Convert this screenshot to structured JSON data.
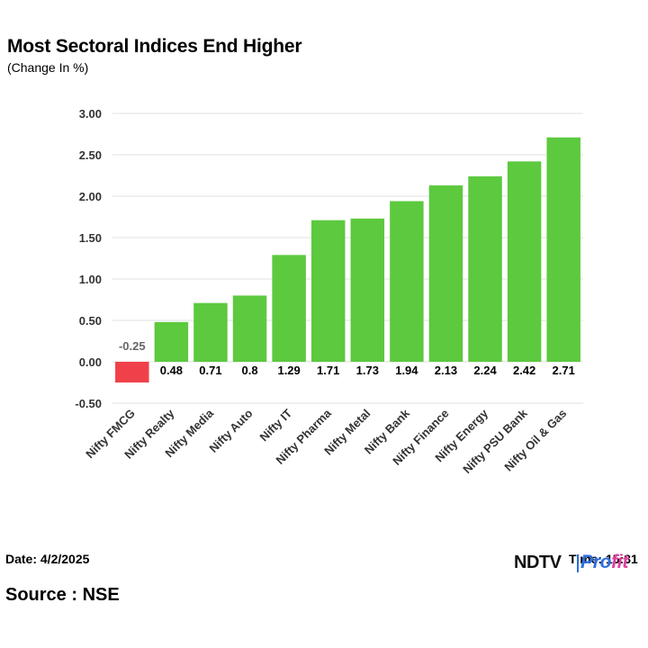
{
  "header": {
    "title": "Most Sectoral Indices End Higher",
    "subtitle": "(Change In %)"
  },
  "footer": {
    "date": "Date: 4/2/2025",
    "time": "Time: 15:31",
    "source": "Source : NSE",
    "logo_text_1": "NDTV",
    "logo_text_2": "Pro",
    "logo_text_3": "fit"
  },
  "colors": {
    "positive": "#5cc93f",
    "negative": "#f0414a",
    "grid": "#e2e2e2",
    "brand_blue": "#2f6fe0",
    "brand_pink": "#e03fa0"
  },
  "chart_data": {
    "type": "bar",
    "title": "Most Sectoral Indices End Higher",
    "subtitle": "(Change In %)",
    "categories": [
      "Nifty FMCG",
      "Nifty Realty",
      "Nifty Media",
      "Nifty Auto",
      "Nifty IT",
      "Nifty Pharma",
      "Nifty Metal",
      "Nifty Bank",
      "Nifty Finance",
      "Nifty Energy",
      "Nifty PSU Bank",
      "Nifty Oil & Gas"
    ],
    "values": [
      -0.25,
      0.48,
      0.71,
      0.8,
      1.29,
      1.71,
      1.73,
      1.94,
      2.13,
      2.24,
      2.42,
      2.71
    ],
    "data_labels": [
      "-0.25",
      "0.48",
      "0.71",
      "0.8",
      "1.29",
      "1.71",
      "1.73",
      "1.94",
      "2.13",
      "2.24",
      "2.42",
      "2.71"
    ],
    "yticks": [
      "-0.50",
      "0.00",
      "0.50",
      "1.00",
      "1.50",
      "2.00",
      "2.50",
      "3.00"
    ],
    "ylim": [
      -0.5,
      3.0
    ],
    "grid": true,
    "legend": "none"
  }
}
